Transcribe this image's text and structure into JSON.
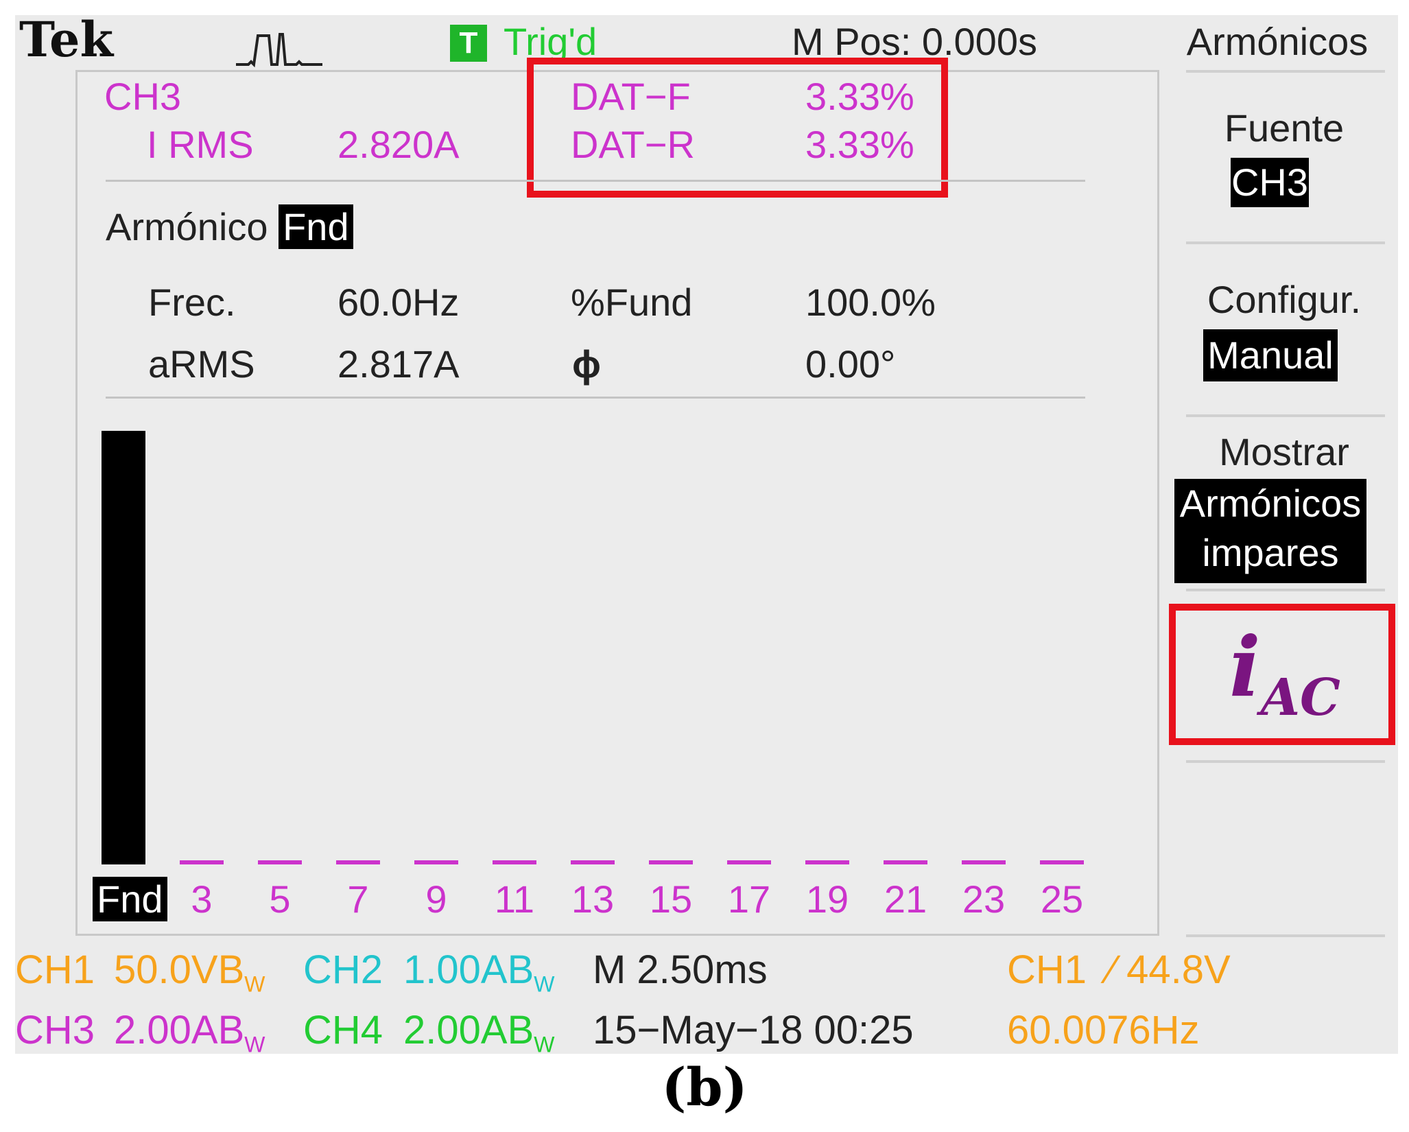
{
  "top_bar": {
    "brand": "Tek",
    "trigger_icon_letter": "T",
    "trigger_status": "Trig'd",
    "m_pos": "M Pos: 0.000s",
    "menu_title": "Armónicos"
  },
  "measurements": {
    "channel": "CH3",
    "i_rms_label": "I RMS",
    "i_rms_value": "2.820A",
    "thd_f_label": "DAT−F",
    "thd_f_value": "3.33%",
    "thd_r_label": "DAT−R",
    "thd_r_value": "3.33%"
  },
  "harmonic": {
    "label": "Armónico",
    "selected": "Fnd",
    "freq_label": "Frec.",
    "freq_value": "60.0Hz",
    "fund_label": "%Fund",
    "fund_value": "100.0%",
    "arms_label": "aRMS",
    "arms_value": "2.817A",
    "phase_label": "ϕ",
    "phase_value": "0.00°"
  },
  "side_menu": {
    "source_label": "Fuente",
    "source_value": "CH3",
    "config_label": "Configur.",
    "config_value": "Manual",
    "show_label": "Mostrar",
    "show_value_line1": "Armónicos",
    "show_value_line2": "impares",
    "annotation_main": "i",
    "annotation_sub": "AC"
  },
  "status_bar": {
    "ch1_label": "CH1",
    "ch1_scale": "50.0VB",
    "ch1_suffix": "W",
    "ch2_label": "CH2",
    "ch2_scale": "1.00AB",
    "ch2_suffix": "W",
    "ch3_label": "CH3",
    "ch3_scale": "2.00AB",
    "ch3_suffix": "W",
    "ch4_label": "CH4",
    "ch4_scale": "2.00AB",
    "ch4_suffix": "W",
    "timebase": "M 2.50ms",
    "datetime": "15−May−18 00:25",
    "trig_source": "CH1",
    "trig_slope": "⁄",
    "trig_level": "44.8V",
    "trig_freq": "60.0076Hz"
  },
  "caption": "(b)",
  "chart_data": {
    "type": "bar",
    "categories": [
      "Fnd",
      "3",
      "5",
      "7",
      "9",
      "11",
      "13",
      "15",
      "17",
      "19",
      "21",
      "23",
      "25"
    ],
    "values": [
      100,
      0.5,
      0.5,
      0.5,
      0.5,
      0.5,
      0.5,
      0.5,
      0.5,
      0.5,
      0.5,
      0.5,
      0.5
    ],
    "ylim": [
      0,
      100
    ],
    "colors": {
      "fundamental": "#000000",
      "harmonics": "#cc33cc"
    }
  }
}
